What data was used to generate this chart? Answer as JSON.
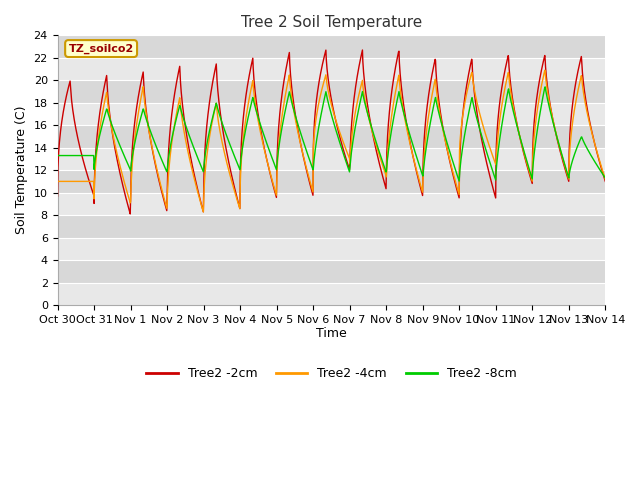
{
  "title": "Tree 2 Soil Temperature",
  "xlabel": "Time",
  "ylabel": "Soil Temperature (C)",
  "ylim": [
    0,
    24
  ],
  "yticks": [
    0,
    2,
    4,
    6,
    8,
    10,
    12,
    14,
    16,
    18,
    20,
    22,
    24
  ],
  "xtick_labels": [
    "Oct 30",
    "Oct 31",
    "Nov 1",
    "Nov 2",
    "Nov 3",
    "Nov 4",
    "Nov 5",
    "Nov 6",
    "Nov 7",
    "Nov 8",
    "Nov 9",
    "Nov 10",
    "Nov 11",
    "Nov 12",
    "Nov 13",
    "Nov 14"
  ],
  "legend_labels": [
    "Tree2 -2cm",
    "Tree2 -4cm",
    "Tree2 -8cm"
  ],
  "line_colors": [
    "#cc0000",
    "#ff9900",
    "#00cc00"
  ],
  "watermark_text": "TZ_soilco2",
  "watermark_bg": "#ffffcc",
  "watermark_border": "#cc9900",
  "watermark_text_color": "#990000",
  "plot_bg_color": "#e8e8e8",
  "alt_bg_color": "#d8d8d8",
  "fig_bg_color": "#ffffff",
  "title_fontsize": 11,
  "axis_label_fontsize": 9,
  "tick_fontsize": 8,
  "num_days": 15,
  "pts_per_day": 96,
  "peaks_2cm": [
    20.0,
    20.5,
    20.8,
    21.3,
    21.5,
    22.0,
    22.5,
    22.7,
    22.7,
    22.7,
    22.0,
    22.0,
    22.3,
    22.3,
    22.2
  ],
  "troughs_2cm": [
    9.7,
    8.0,
    8.3,
    8.2,
    8.5,
    9.5,
    9.7,
    12.0,
    10.3,
    9.7,
    9.5,
    9.5,
    10.8,
    11.0,
    11.0
  ],
  "peaks_4cm": [
    11.0,
    19.0,
    19.5,
    18.5,
    18.0,
    20.0,
    20.5,
    20.5,
    20.0,
    20.5,
    20.2,
    20.8,
    20.8,
    21.0,
    20.5
  ],
  "troughs_4cm": [
    11.0,
    9.0,
    8.5,
    8.2,
    8.5,
    9.7,
    10.0,
    13.0,
    11.5,
    10.0,
    9.8,
    12.5,
    11.0,
    11.2,
    11.2
  ],
  "peaks_8cm": [
    13.3,
    17.5,
    17.5,
    17.8,
    18.0,
    18.5,
    19.0,
    19.0,
    19.0,
    19.0,
    18.5,
    18.5,
    19.3,
    19.5,
    15.0
  ],
  "troughs_8cm": [
    13.3,
    12.0,
    11.8,
    11.8,
    12.0,
    12.0,
    12.0,
    11.8,
    11.8,
    11.5,
    11.0,
    11.1,
    11.2,
    11.3,
    11.3
  ]
}
